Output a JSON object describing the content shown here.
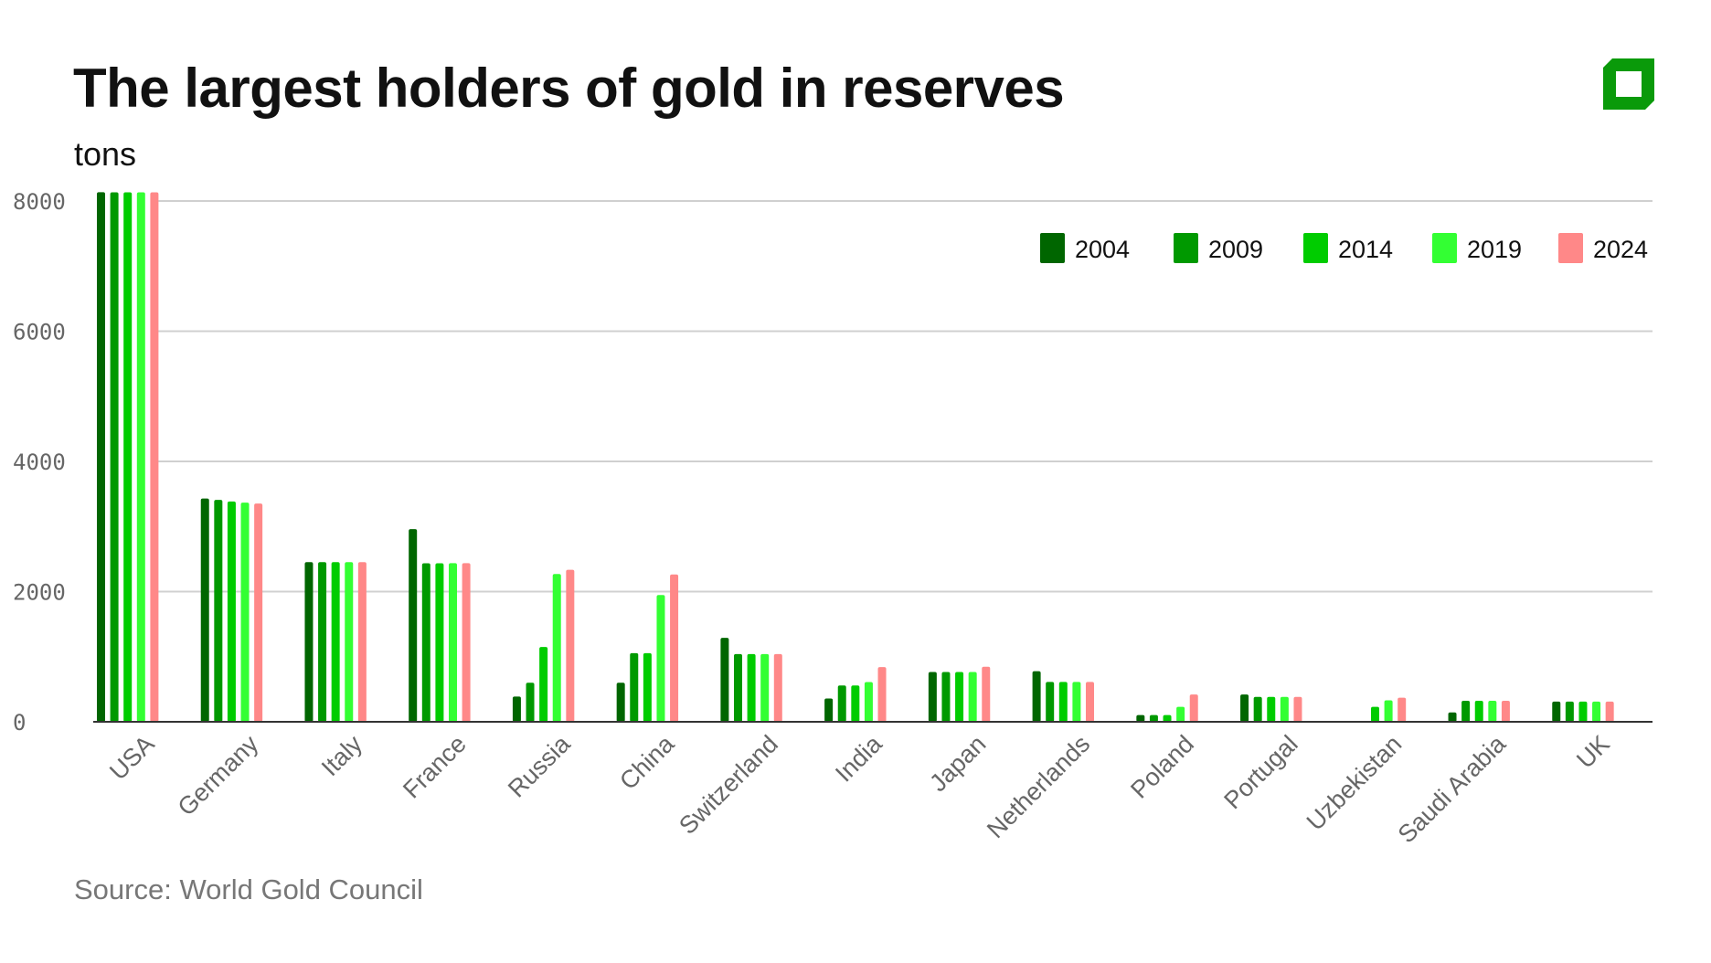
{
  "title": "The largest holders of gold in reserves",
  "unit": "tons",
  "source": "Source: World Gold Council",
  "logo_color": "#0a9a0a",
  "chart_data": {
    "type": "bar",
    "title": "The largest holders of gold in reserves",
    "ylabel": "tons",
    "ylim": [
      0,
      8000
    ],
    "yticks": [
      0,
      2000,
      4000,
      6000,
      8000
    ],
    "grid": true,
    "legend_position": "top-right",
    "categories": [
      "USA",
      "Germany",
      "Italy",
      "France",
      "Russia",
      "China",
      "Switzerland",
      "India",
      "Japan",
      "Netherlands",
      "Poland",
      "Portugal",
      "Uzbekistan",
      "Saudi Arabia",
      "UK"
    ],
    "series": [
      {
        "name": "2004",
        "color": "#006600",
        "values": [
          8135,
          3430,
          2452,
          2960,
          387,
          600,
          1290,
          358,
          765,
          778,
          103,
          420,
          null,
          143,
          310
        ]
      },
      {
        "name": "2009",
        "color": "#009900",
        "values": [
          8134,
          3408,
          2452,
          2435,
          600,
          1054,
          1040,
          558,
          765,
          612,
          103,
          383,
          null,
          323,
          310
        ]
      },
      {
        "name": "2014",
        "color": "#00cc00",
        "values": [
          8134,
          3384,
          2452,
          2435,
          1150,
          1054,
          1040,
          558,
          765,
          612,
          103,
          383,
          230,
          323,
          310
        ]
      },
      {
        "name": "2019",
        "color": "#33ff33",
        "values": [
          8134,
          3367,
          2452,
          2436,
          2270,
          1948,
          1040,
          610,
          765,
          612,
          229,
          383,
          330,
          323,
          310
        ]
      },
      {
        "name": "2024",
        "color": "#ff8888",
        "values": [
          8133,
          3352,
          2452,
          2437,
          2335,
          2264,
          1040,
          840,
          846,
          612,
          420,
          383,
          370,
          323,
          310
        ]
      }
    ]
  }
}
